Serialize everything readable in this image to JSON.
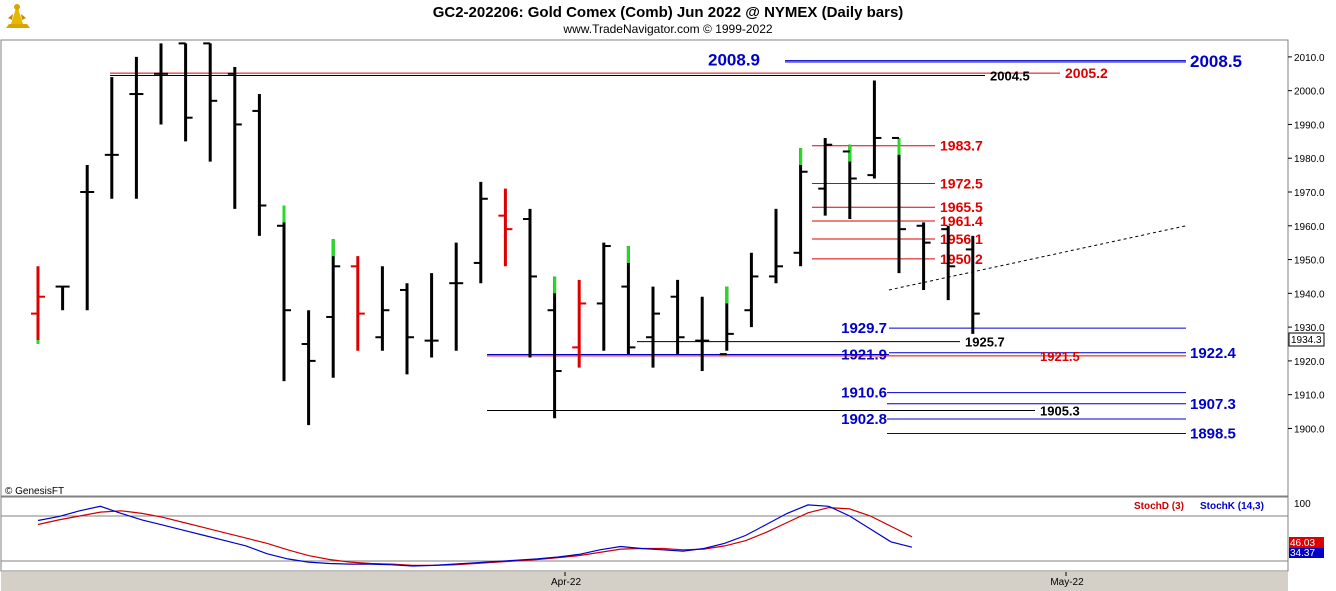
{
  "header": {
    "title": "GC2-202206:  Gold Comex (Comb) Jun 2022 @ NYMEX  (Daily bars)",
    "subtitle": "www.TradeNavigator.com © 1999-2022",
    "copyright": "© GenesisFT"
  },
  "colors": {
    "up_bar": "#22dd22",
    "down_bar": "#dd0000",
    "neutral_bar": "#000000",
    "blue_level": "#0000cc",
    "red_level": "#dd0000",
    "black_level": "#000000",
    "stoch_k": "#0000cc",
    "stoch_d": "#cc0000",
    "panel_border": "#808080",
    "scrollbar": "#d4d0c8"
  },
  "chart_data": {
    "type": "ohlc",
    "ylim": [
      1880,
      2015
    ],
    "yticks": [
      "2010.0",
      "2000.0",
      "1990.0",
      "1980.0",
      "1970.0",
      "1960.0",
      "1950.0",
      "1940.0",
      "1930.0",
      "1920.0",
      "1910.0",
      "1900.0"
    ],
    "last_price": "1934.3",
    "x_labels": [
      "Apr-22",
      "May-22"
    ],
    "bars": [
      {
        "o": 1934,
        "h": 1948,
        "l": 1925,
        "c": 1939,
        "col": "red",
        "head": 1926
      },
      {
        "o": 1942,
        "h": 1942,
        "l": 1935,
        "c": 1942,
        "col": "black"
      },
      {
        "o": 1970,
        "h": 1978,
        "l": 1935,
        "c": 1970,
        "col": "black"
      },
      {
        "o": 1981,
        "h": 2004,
        "l": 1968,
        "c": 1981,
        "col": "black"
      },
      {
        "o": 1999,
        "h": 2010,
        "l": 1968,
        "c": 1999,
        "col": "black"
      },
      {
        "o": 2005,
        "h": 2014,
        "l": 1990,
        "c": 2005,
        "col": "black"
      },
      {
        "o": 2014,
        "h": 2014,
        "l": 1985,
        "c": 1992,
        "col": "black"
      },
      {
        "o": 2014,
        "h": 2014,
        "l": 1979,
        "c": 1997,
        "col": "black"
      },
      {
        "o": 2005,
        "h": 2007,
        "l": 1965,
        "c": 1990,
        "col": "black"
      },
      {
        "o": 1994,
        "h": 1999,
        "l": 1957,
        "c": 1966,
        "col": "black"
      },
      {
        "o": 1960,
        "h": 1966,
        "l": 1914,
        "c": 1935,
        "col": "up",
        "head": 1961
      },
      {
        "o": 1925,
        "h": 1935,
        "l": 1901,
        "c": 1920,
        "col": "black"
      },
      {
        "o": 1933,
        "h": 1956,
        "l": 1915,
        "c": 1948,
        "col": "up",
        "head": 1929
      },
      {
        "o": 1948,
        "h": 1951,
        "l": 1923,
        "c": 1934,
        "col": "red"
      },
      {
        "o": 1927,
        "h": 1948,
        "l": 1923,
        "c": 1935,
        "col": "black"
      },
      {
        "o": 1941,
        "h": 1943,
        "l": 1916,
        "c": 1927,
        "col": "black"
      },
      {
        "o": 1926,
        "h": 1946,
        "l": 1921,
        "c": 1926,
        "col": "black"
      },
      {
        "o": 1943,
        "h": 1955,
        "l": 1923,
        "c": 1943,
        "col": "black"
      },
      {
        "o": 1949,
        "h": 1973,
        "l": 1943,
        "c": 1968,
        "col": "black"
      },
      {
        "o": 1963,
        "h": 1971,
        "l": 1948,
        "c": 1959,
        "col": "red"
      },
      {
        "o": 1962,
        "h": 1965,
        "l": 1921,
        "c": 1945,
        "col": "black"
      },
      {
        "o": 1935,
        "h": 1945,
        "l": 1903,
        "c": 1917,
        "col": "up",
        "head": 1936
      },
      {
        "o": 1924,
        "h": 1944,
        "l": 1918,
        "c": 1937,
        "col": "red"
      },
      {
        "o": 1937,
        "h": 1955,
        "l": 1923,
        "c": 1954,
        "col": "black"
      },
      {
        "o": 1942,
        "h": 1954,
        "l": 1922,
        "c": 1924,
        "col": "up",
        "head": 1944
      },
      {
        "o": 1927,
        "h": 1942,
        "l": 1918,
        "c": 1934,
        "col": "black"
      },
      {
        "o": 1939,
        "h": 1944,
        "l": 1922,
        "c": 1927,
        "col": "black"
      },
      {
        "o": 1926,
        "h": 1939,
        "l": 1917,
        "c": 1926,
        "col": "black"
      },
      {
        "o": 1922,
        "h": 1942,
        "l": 1923,
        "c": 1928,
        "col": "up",
        "head": 1923
      },
      {
        "o": 1935,
        "h": 1952,
        "l": 1930,
        "c": 1945,
        "col": "black"
      },
      {
        "o": 1945,
        "h": 1965,
        "l": 1943,
        "c": 1948,
        "col": "black"
      },
      {
        "o": 1952,
        "h": 1983,
        "l": 1948,
        "c": 1976,
        "col": "up",
        "head": 1952
      },
      {
        "o": 1971,
        "h": 1986,
        "l": 1963,
        "c": 1984,
        "col": "black"
      },
      {
        "o": 1982,
        "h": 1984,
        "l": 1962,
        "c": 1974,
        "col": "up",
        "head": 1983
      },
      {
        "o": 1975,
        "h": 2003,
        "l": 1974,
        "c": 1986,
        "col": "black"
      },
      {
        "o": 1986,
        "h": 1986,
        "l": 1946,
        "c": 1959,
        "col": "up",
        "head": 1985
      },
      {
        "o": 1960,
        "h": 1961,
        "l": 1941,
        "c": 1955,
        "col": "black"
      },
      {
        "o": 1959,
        "h": 1960,
        "l": 1938,
        "c": 1948,
        "col": "black"
      },
      {
        "o": 1953,
        "h": 1957,
        "l": 1928,
        "c": 1934,
        "col": "black"
      }
    ],
    "levels": [
      {
        "label": "2008.9",
        "value": 2008.9,
        "color": "blue",
        "side": "left"
      },
      {
        "label": "2008.5",
        "value": 2008.5,
        "color": "blue",
        "side": "right"
      },
      {
        "label": "2005.2",
        "value": 2005.2,
        "color": "red",
        "side": "mid"
      },
      {
        "label": "2004.5",
        "value": 2004.5,
        "color": "black",
        "side": "mid"
      },
      {
        "label": "1983.7",
        "value": 1983.7,
        "color": "red",
        "side": "short"
      },
      {
        "label": "1972.5",
        "value": 1972.5,
        "color": "red",
        "side": "short"
      },
      {
        "label": "1965.5",
        "value": 1965.5,
        "color": "red",
        "side": "short"
      },
      {
        "label": "1961.4",
        "value": 1961.4,
        "color": "red",
        "side": "short"
      },
      {
        "label": "1956.1",
        "value": 1956.1,
        "color": "red",
        "side": "short"
      },
      {
        "label": "1950.2",
        "value": 1950.2,
        "color": "red",
        "side": "short"
      },
      {
        "label": "1929.7",
        "value": 1929.7,
        "color": "blue",
        "side": "left"
      },
      {
        "label": "1925.7",
        "value": 1925.7,
        "color": "black",
        "side": "mid"
      },
      {
        "label": "1922.4",
        "value": 1922.4,
        "color": "blue",
        "side": "right"
      },
      {
        "label": "1921.9",
        "value": 1921.9,
        "color": "blue",
        "side": "left"
      },
      {
        "label": "1921.5",
        "value": 1921.5,
        "color": "red",
        "side": "mid"
      },
      {
        "label": "1910.6",
        "value": 1910.6,
        "color": "blue",
        "side": "left"
      },
      {
        "label": "1907.3",
        "value": 1907.3,
        "color": "blue",
        "side": "right"
      },
      {
        "label": "1905.3",
        "value": 1905.3,
        "color": "black",
        "side": "mid"
      },
      {
        "label": "1902.8",
        "value": 1902.8,
        "color": "blue",
        "side": "left"
      },
      {
        "label": "1898.5",
        "value": 1898.5,
        "color": "blue",
        "side": "right"
      }
    ],
    "trendline": {
      "from_value": 1941,
      "to_value": 1960
    },
    "stochastic": {
      "labels": [
        "StochD (3)",
        "StochK (14,3)"
      ],
      "scale_label": "100",
      "d_value_label": "46.03",
      "k_value_label": "34.37",
      "k": [
        73,
        79,
        88,
        95,
        84,
        74,
        66,
        58,
        50,
        42,
        34,
        22,
        14,
        9,
        7,
        6,
        6,
        5,
        3,
        4,
        6,
        8,
        10,
        12,
        14,
        17,
        21,
        28,
        33,
        30,
        28,
        26,
        30,
        38,
        50,
        67,
        84,
        97,
        95,
        80,
        60,
        40,
        32
      ],
      "d": [
        67,
        74,
        80,
        86,
        88,
        84,
        78,
        70,
        62,
        54,
        46,
        38,
        28,
        19,
        13,
        9,
        7,
        6,
        4,
        4,
        5,
        7,
        9,
        11,
        13,
        16,
        19,
        24,
        29,
        30,
        30,
        28,
        29,
        34,
        42,
        55,
        70,
        85,
        93,
        91,
        80,
        64,
        48
      ]
    }
  }
}
